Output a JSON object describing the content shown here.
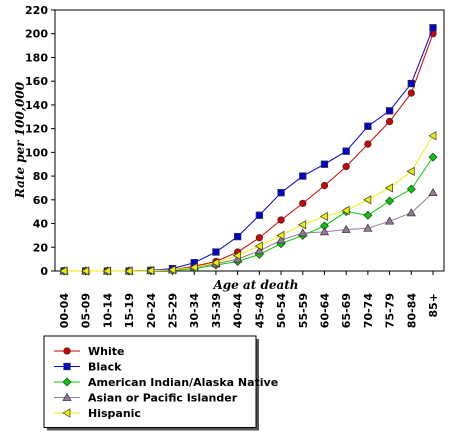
{
  "chart_data": {
    "type": "line",
    "xlabel": "Age at death",
    "ylabel": "Rate per 100,000",
    "ylim": [
      0,
      220
    ],
    "yticks": [
      0,
      20,
      40,
      60,
      80,
      100,
      120,
      140,
      160,
      180,
      200,
      220
    ],
    "grid": false,
    "legend_position": "bottom",
    "categories": [
      "00-04",
      "05-09",
      "10-14",
      "15-19",
      "20-24",
      "25-29",
      "30-34",
      "35-39",
      "40-44",
      "45-49",
      "50-54",
      "55-59",
      "60-64",
      "65-69",
      "70-74",
      "75-79",
      "80-84",
      "85+"
    ],
    "series": [
      {
        "name": "White",
        "color": "#cc0000",
        "marker": "circle",
        "values": [
          0,
          0,
          0,
          0,
          0.3,
          1,
          4,
          8,
          16,
          28,
          43,
          57,
          72,
          88,
          107,
          126,
          150,
          200
        ]
      },
      {
        "name": "Black",
        "color": "#0000cc",
        "marker": "square",
        "values": [
          0,
          0,
          0,
          0,
          0.5,
          2,
          7,
          16,
          29,
          47,
          66,
          80,
          90,
          101,
          122,
          135,
          158,
          205
        ]
      },
      {
        "name": "American Indian/Alaska Native",
        "color": "#00cc00",
        "marker": "diamond",
        "values": [
          0,
          0,
          0,
          0,
          0.2,
          0.5,
          2,
          5,
          8,
          14,
          23,
          30,
          38,
          50,
          47,
          59,
          69,
          96
        ]
      },
      {
        "name": "Asian or Pacific Islander",
        "color": "#997799",
        "marker": "triangle-up",
        "values": [
          0,
          0,
          0,
          0,
          0.2,
          0.8,
          3,
          6,
          10,
          17,
          26,
          32,
          33,
          35,
          36,
          42,
          49,
          66
        ]
      },
      {
        "name": "Hispanic",
        "color": "#eeee00",
        "marker": "triangle-left",
        "values": [
          0,
          0,
          0,
          0,
          0.3,
          1,
          3,
          7,
          13,
          21,
          30,
          39,
          46,
          51,
          60,
          70,
          84,
          114
        ]
      }
    ]
  }
}
